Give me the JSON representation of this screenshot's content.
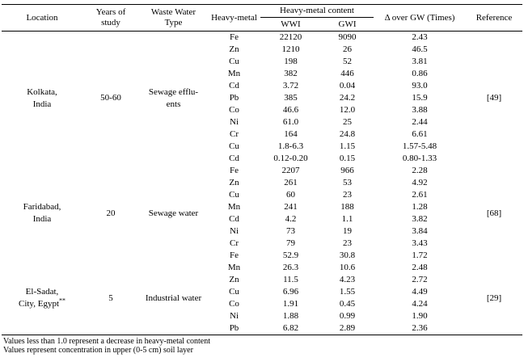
{
  "table": {
    "headers": {
      "location": "Location",
      "years": "Years of\nstudy",
      "waste_type": "Waste Water\nType",
      "heavy_metal": "Heavy-metal",
      "content": "Heavy-metal content",
      "wwi": "WWI",
      "gwi": "GWI",
      "delta": "Δ over GW (Times)",
      "reference": "Reference"
    },
    "groups": [
      {
        "location": "Kolkata,\nIndia",
        "years": "50-60",
        "waste_type": "Sewage efflu-\nents",
        "reference": "[49]",
        "rows": [
          {
            "metal": "Fe",
            "wwi": "22120",
            "gwi": "9090",
            "delta": "2.43"
          },
          {
            "metal": "Zn",
            "wwi": "1210",
            "gwi": "26",
            "delta": "46.5"
          },
          {
            "metal": "Cu",
            "wwi": "198",
            "gwi": "52",
            "delta": "3.81"
          },
          {
            "metal": "Mn",
            "wwi": "382",
            "gwi": "446",
            "delta": "0.86"
          },
          {
            "metal": "Cd",
            "wwi": "3.72",
            "gwi": "0.04",
            "delta": "93.0"
          },
          {
            "metal": "Pb",
            "wwi": "385",
            "gwi": "24.2",
            "delta": "15.9"
          },
          {
            "metal": "Co",
            "wwi": "46.6",
            "gwi": "12.0",
            "delta": "3.88"
          },
          {
            "metal": "Ni",
            "wwi": "61.0",
            "gwi": "25",
            "delta": "2.44"
          },
          {
            "metal": "Cr",
            "wwi": "164",
            "gwi": "24.8",
            "delta": "6.61"
          },
          {
            "metal": "Cu",
            "wwi": "1.8-6.3",
            "gwi": "1.15",
            "delta": "1.57-5.48"
          },
          {
            "metal": "Cd",
            "wwi": "0.12-0.20",
            "gwi": "0.15",
            "delta": "0.80-1.33"
          }
        ]
      },
      {
        "location": "Faridabad,\nIndia",
        "years": "20",
        "waste_type": "Sewage water",
        "reference": "[68]",
        "rows": [
          {
            "metal": "Fe",
            "wwi": "2207",
            "gwi": "966",
            "delta": "2.28"
          },
          {
            "metal": "Zn",
            "wwi": "261",
            "gwi": "53",
            "delta": "4.92"
          },
          {
            "metal": "Cu",
            "wwi": "60",
            "gwi": "23",
            "delta": "2.61"
          },
          {
            "metal": "Mn",
            "wwi": "241",
            "gwi": "188",
            "delta": "1.28"
          },
          {
            "metal": "Cd",
            "wwi": "4.2",
            "gwi": "1.1",
            "delta": "3.82"
          },
          {
            "metal": "Ni",
            "wwi": "73",
            "gwi": "19",
            "delta": "3.84"
          },
          {
            "metal": "Cr",
            "wwi": "79",
            "gwi": "23",
            "delta": "3.43"
          },
          {
            "metal": "Fe",
            "wwi": "52.9",
            "gwi": "30.8",
            "delta": "1.72"
          }
        ]
      },
      {
        "location": "El-Sadat,\nCity, Egypt",
        "location_sup": "**",
        "years": "5",
        "waste_type": "Industrial water",
        "reference": "[29]",
        "rows": [
          {
            "metal": "Mn",
            "wwi": "26.3",
            "gwi": "10.6",
            "delta": "2.48"
          },
          {
            "metal": "Zn",
            "wwi": "11.5",
            "gwi": "4.23",
            "delta": "2.72"
          },
          {
            "metal": "Cu",
            "wwi": "6.96",
            "gwi": "1.55",
            "delta": "4.49"
          },
          {
            "metal": "Co",
            "wwi": "1.91",
            "gwi": "0.45",
            "delta": "4.24"
          },
          {
            "metal": "Ni",
            "wwi": "1.88",
            "gwi": "0.99",
            "delta": "1.90"
          },
          {
            "metal": "Pb",
            "wwi": "6.82",
            "gwi": "2.89",
            "delta": "2.36"
          }
        ]
      }
    ],
    "footnotes": [
      "Values less than 1.0 represent a decrease in heavy-metal content",
      "Values represent concentration in upper (0-5 cm) soil layer"
    ]
  }
}
